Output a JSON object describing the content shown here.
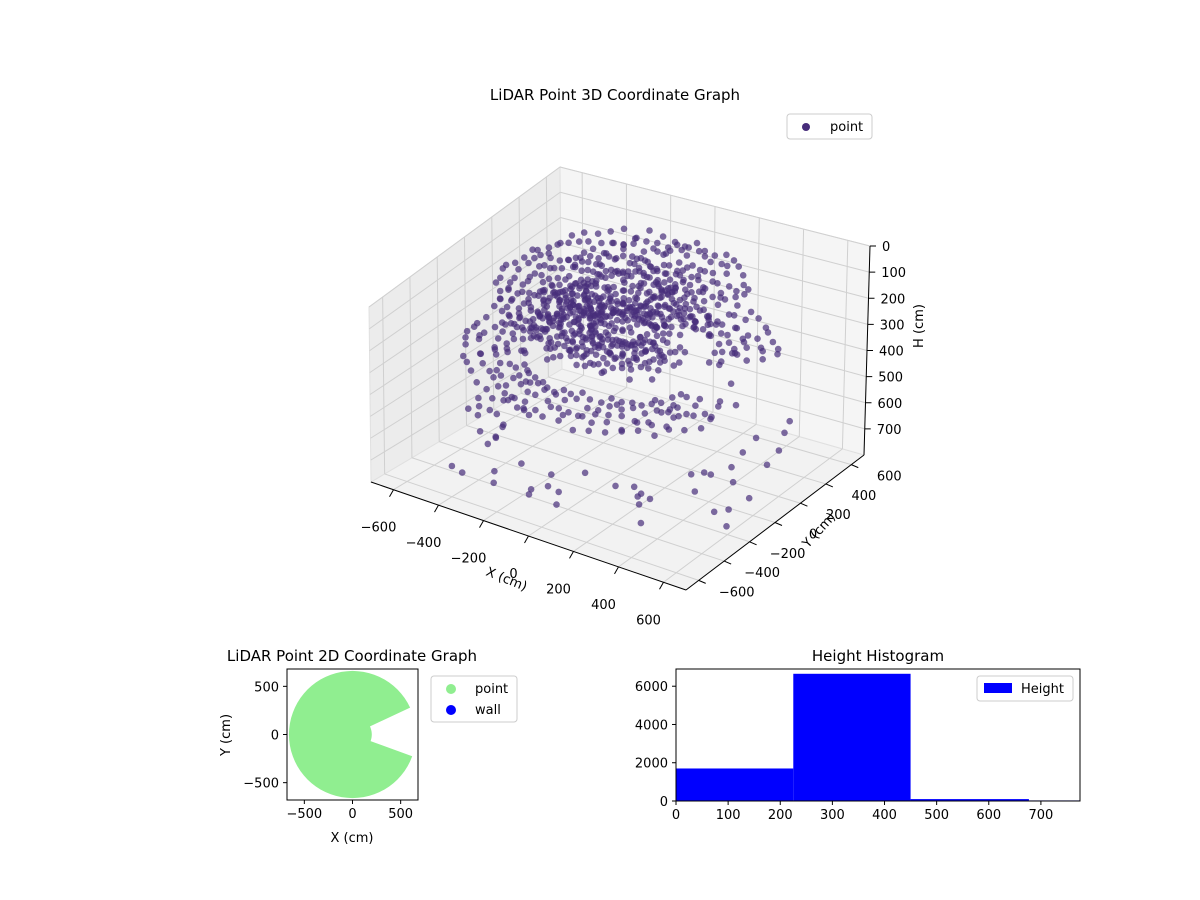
{
  "figure_title": "",
  "chart_data": [
    {
      "type": "scatter",
      "projection": "3d",
      "title": "LiDAR Point 3D Coordinate Graph",
      "xlabel": "X (cm)",
      "ylabel": "Y (cm)",
      "zlabel": "H (cm)",
      "xlim": [
        -700,
        700
      ],
      "ylim": [
        -700,
        700
      ],
      "zlim": [
        800,
        0
      ],
      "z_inverted": true,
      "x_ticks": [
        -600,
        -400,
        -200,
        0,
        200,
        400,
        600
      ],
      "y_ticks": [
        -600,
        -400,
        -200,
        0,
        200,
        400,
        600
      ],
      "z_ticks": [
        0,
        100,
        200,
        300,
        400,
        500,
        600,
        700
      ],
      "grid": true,
      "legend": {
        "position": "top-right",
        "entries": [
          "point"
        ]
      },
      "series": [
        {
          "name": "point",
          "color": "#472d7b",
          "structure": [
            {
              "kind": "ring",
              "height": 300,
              "radius_min": 380,
              "radius_max": 640,
              "gap_from_deg": -20,
              "gap_to_deg": 25
            },
            {
              "kind": "ring",
              "height": 180,
              "radius_min": 120,
              "radius_max": 360,
              "gap_from_deg": -15,
              "gap_to_deg": 20
            },
            {
              "kind": "ring",
              "height": 40,
              "radius_min": 150,
              "radius_max": 520,
              "gap_from_deg": -25,
              "gap_to_deg": 25
            },
            {
              "kind": "sparse",
              "height_min": 500,
              "height_max": 790,
              "radius_min": 450,
              "radius_max": 690
            }
          ]
        }
      ]
    },
    {
      "type": "scatter",
      "title": "LiDAR Point 2D Coordinate Graph",
      "xlabel": "X (cm)",
      "ylabel": "Y (cm)",
      "xlim": [
        -680,
        680
      ],
      "ylim": [
        -680,
        680
      ],
      "x_ticks": [
        -500,
        0,
        500
      ],
      "y_ticks": [
        -500,
        0,
        500
      ],
      "legend": {
        "position": "outside-right",
        "entries": [
          "point",
          "wall"
        ]
      },
      "series": [
        {
          "name": "point",
          "color": "#90ee90",
          "radius_max": 660,
          "gap_from_deg": -20,
          "gap_to_deg": 25,
          "gap_radius_min": 200
        },
        {
          "name": "wall",
          "color": "#0000ff",
          "values": []
        }
      ]
    },
    {
      "type": "bar",
      "subtype": "histogram",
      "title": "Height Histogram",
      "xlim": [
        0,
        775
      ],
      "ylim": [
        0,
        6900
      ],
      "x_ticks": [
        0,
        100,
        200,
        300,
        400,
        500,
        600,
        700
      ],
      "y_ticks": [
        0,
        2000,
        4000,
        6000
      ],
      "bin_edges": [
        0,
        225,
        450,
        677,
        775
      ],
      "values": [
        1700,
        6650,
        100,
        30
      ],
      "legend": {
        "position": "top-right",
        "entries": [
          "Height"
        ]
      },
      "series": [
        {
          "name": "Height",
          "color": "#0000ff"
        }
      ]
    }
  ]
}
